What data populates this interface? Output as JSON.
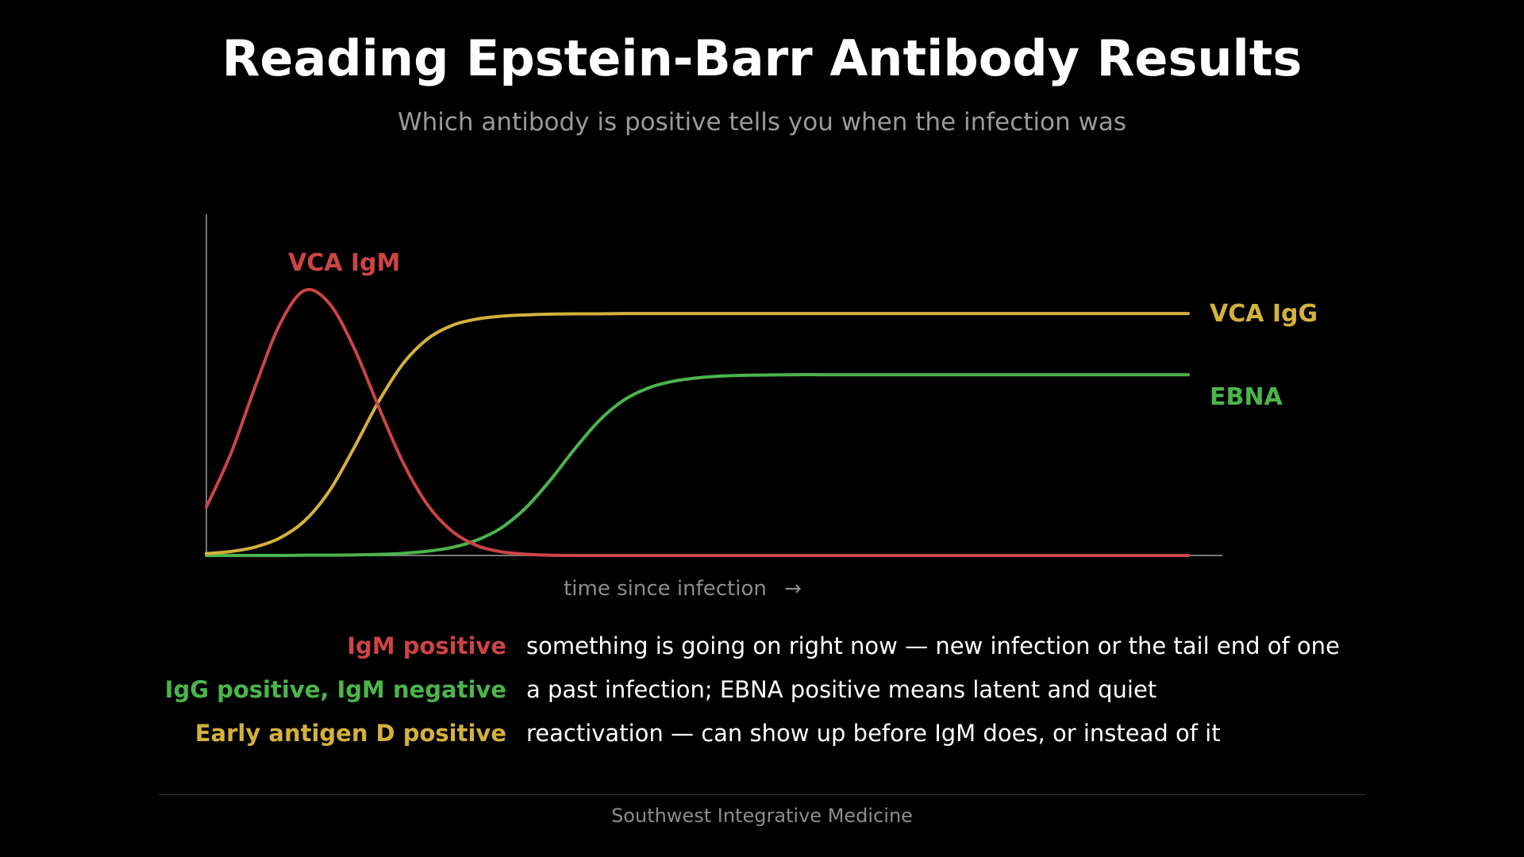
{
  "header": {
    "title": "Reading Epstein-Barr Antibody Results",
    "subtitle": "Which antibody is positive tells you when the infection was"
  },
  "chart_data": {
    "type": "line",
    "title": "",
    "xlabel": "time since infection",
    "xlabel_arrow": "→",
    "ylabel": "",
    "x_tick_labels": false,
    "y_tick_labels": false,
    "grid": false,
    "legend": "direct labels at curve ends",
    "xlim": [
      0,
      100
    ],
    "ylim": [
      0,
      100
    ],
    "x": [
      0,
      2.5,
      5,
      7.5,
      10,
      12.5,
      15,
      17.5,
      20,
      22.5,
      25,
      27.5,
      30,
      32.5,
      35,
      37.5,
      40,
      42.5,
      45,
      47.5,
      50,
      52.5,
      55,
      57.5,
      60,
      62.5,
      65,
      67.5,
      70,
      72.5,
      75,
      77.5,
      80,
      82.5,
      85,
      87.5,
      90,
      92.5,
      95,
      97.5,
      100
    ],
    "series": [
      {
        "name": "VCA IgM",
        "color": "#cc4444",
        "values": [
          18.2,
          38.4,
          63.8,
          87.1,
          99.7,
          94.9,
          78.4,
          56.3,
          35.2,
          19.2,
          9.2,
          3.8,
          1.4,
          0.5,
          0.1,
          0,
          0,
          0,
          0,
          0,
          0,
          0,
          0,
          0,
          0,
          0,
          0,
          0,
          0,
          0,
          0,
          0,
          0,
          0,
          0,
          0,
          0,
          0,
          0,
          0,
          0
        ]
      },
      {
        "name": "VCA IgG",
        "color": "#d4b13d",
        "values": [
          0.7,
          1.5,
          3.2,
          6.6,
          13.0,
          24.1,
          40.2,
          57.6,
          72.0,
          81.4,
          86.5,
          88.9,
          90.0,
          90.5,
          90.8,
          90.9,
          90.9,
          91.0,
          91.0,
          91.0,
          91.0,
          91.0,
          91.0,
          91.0,
          91.0,
          91.0,
          91.0,
          91.0,
          91.0,
          91.0,
          91.0,
          91.0,
          91.0,
          91.0,
          91.0,
          91.0,
          91.0,
          91.0,
          91.0,
          91.0,
          91.0
        ]
      },
      {
        "name": "EBNA",
        "color": "#4bb54b",
        "values": [
          0,
          0,
          0,
          0,
          0.1,
          0.1,
          0.2,
          0.4,
          0.8,
          1.6,
          3.0,
          5.7,
          10.3,
          17.8,
          28.2,
          40.0,
          50.7,
          58.4,
          63.0,
          65.5,
          66.8,
          67.5,
          67.8,
          67.9,
          68.0,
          68.0,
          68.0,
          68.0,
          68.0,
          68.0,
          68.0,
          68.0,
          68.0,
          68.0,
          68.0,
          68.0,
          68.0,
          68.0,
          68.0,
          68.0,
          68.0
        ]
      }
    ]
  },
  "legend_rows": [
    {
      "key": "IgM positive",
      "color": "#cc4444",
      "description": "something is going on right now — new infection or the tail end of one"
    },
    {
      "key": "IgG positive, IgM negative",
      "color": "#4bb54b",
      "description": "a past infection; EBNA positive means latent and quiet"
    },
    {
      "key": "Early antigen D positive",
      "color": "#d4b13d",
      "description": "reactivation — can show up before IgM does, or instead of it"
    }
  ],
  "footer": {
    "text": "Southwest Integrative Medicine"
  },
  "colors": {
    "background": "#000000",
    "axis": "#777777",
    "muted_text": "#9a9a9a"
  }
}
